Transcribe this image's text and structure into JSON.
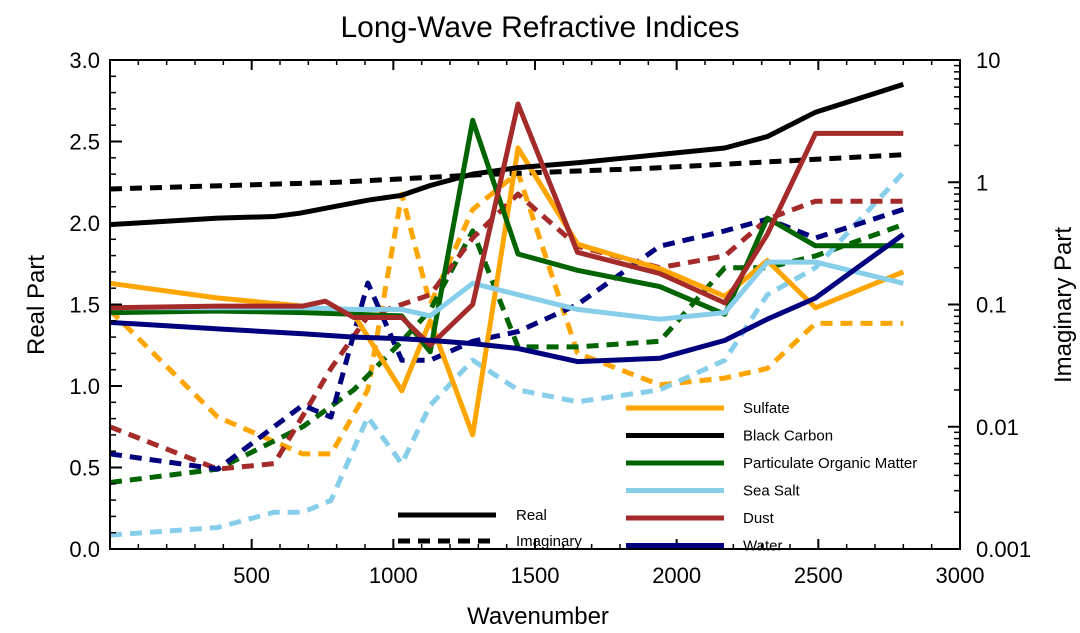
{
  "chart_data": {
    "type": "line",
    "title": "Long-Wave Refractive Indices",
    "xlabel": "Wavenumber",
    "ylabel": "Real Part",
    "y2label": "Imaginary Part",
    "xlim": [
      0,
      3000
    ],
    "ylim": [
      0,
      3.0
    ],
    "y2lim": [
      0.001,
      10
    ],
    "y2scale": "log",
    "xticks": [
      "500",
      "1000",
      "1500",
      "2000",
      "2500",
      "3000"
    ],
    "yticks": [
      "0.0",
      "0.5",
      "1.0",
      "1.5",
      "2.0",
      "2.5",
      "3.0"
    ],
    "y2ticks": [
      "0.001",
      "0.01",
      "0.1",
      "1",
      "10"
    ],
    "grid": false,
    "legend_placement": "bottom-right",
    "style_legend": [
      {
        "label": "Real",
        "dash": "solid"
      },
      {
        "label": "Imaginary",
        "dash": "dashed"
      }
    ],
    "series": [
      {
        "name": "Sulfate",
        "color": "#FFA500",
        "real": {
          "x": [
            0,
            380,
            680,
            860,
            1030,
            1130,
            1280,
            1440,
            1650,
            1940,
            2170,
            2320,
            2490,
            2800
          ],
          "y": [
            1.63,
            1.54,
            1.49,
            1.44,
            0.97,
            1.4,
            0.7,
            2.46,
            1.87,
            1.72,
            1.55,
            1.77,
            1.48,
            1.7
          ]
        },
        "imag": {
          "x": [
            0,
            380,
            680,
            780,
            910,
            1030,
            1130,
            1280,
            1440,
            1650,
            1940,
            2170,
            2320,
            2490,
            2800
          ],
          "y": [
            0.09,
            0.012,
            0.006,
            0.006,
            0.02,
            0.8,
            0.1,
            0.6,
            1.2,
            0.04,
            0.022,
            0.025,
            0.03,
            0.07,
            0.07
          ]
        }
      },
      {
        "name": "Black Carbon",
        "color": "#000000",
        "real": {
          "x": [
            0,
            380,
            580,
            670,
            760,
            910,
            1030,
            1130,
            1280,
            1440,
            1650,
            1940,
            2170,
            2320,
            2490,
            2800
          ],
          "y": [
            1.99,
            2.03,
            2.04,
            2.06,
            2.09,
            2.14,
            2.17,
            2.23,
            2.3,
            2.34,
            2.37,
            2.42,
            2.46,
            2.53,
            2.68,
            2.85
          ]
        },
        "imag": {
          "x": [
            0,
            800,
            1300,
            1900,
            2400,
            2800
          ],
          "y": [
            0.88,
            1.0,
            1.15,
            1.3,
            1.5,
            1.68
          ]
        }
      },
      {
        "name": "Particulate Organic Matter",
        "color": "#006400",
        "real": {
          "x": [
            0,
            380,
            680,
            860,
            1030,
            1130,
            1280,
            1440,
            1650,
            1940,
            2170,
            2320,
            2490,
            2800
          ],
          "y": [
            1.45,
            1.46,
            1.45,
            1.44,
            1.43,
            1.21,
            2.63,
            1.81,
            1.71,
            1.61,
            1.44,
            2.03,
            1.86,
            1.86
          ]
        },
        "imag": {
          "x": [
            0,
            380,
            680,
            860,
            1030,
            1130,
            1280,
            1440,
            1650,
            1940,
            2170,
            2320,
            2490,
            2800
          ],
          "y": [
            0.0035,
            0.0045,
            0.01,
            0.02,
            0.05,
            0.09,
            0.4,
            0.045,
            0.045,
            0.05,
            0.2,
            0.2,
            0.25,
            0.45
          ]
        }
      },
      {
        "name": "Sea Salt",
        "color": "#87CEEB",
        "real": {
          "x": [
            0,
            380,
            680,
            860,
            1030,
            1130,
            1280,
            1440,
            1650,
            1940,
            2170,
            2320,
            2490,
            2800
          ],
          "y": [
            1.48,
            1.48,
            1.48,
            1.47,
            1.47,
            1.43,
            1.63,
            1.56,
            1.47,
            1.41,
            1.45,
            1.76,
            1.76,
            1.63
          ]
        },
        "imag": {
          "x": [
            0,
            380,
            580,
            680,
            780,
            910,
            1030,
            1130,
            1280,
            1440,
            1650,
            1940,
            2170,
            2320,
            2490,
            2800
          ],
          "y": [
            0.0013,
            0.0015,
            0.002,
            0.002,
            0.0025,
            0.012,
            0.005,
            0.015,
            0.035,
            0.02,
            0.016,
            0.02,
            0.035,
            0.12,
            0.2,
            1.2
          ]
        }
      },
      {
        "name": "Dust",
        "color": "#A52A2A",
        "real": {
          "x": [
            0,
            380,
            580,
            680,
            760,
            860,
            1030,
            1130,
            1280,
            1440,
            1650,
            1940,
            2170,
            2320,
            2490,
            2800
          ],
          "y": [
            1.48,
            1.49,
            1.49,
            1.49,
            1.52,
            1.42,
            1.42,
            1.25,
            1.5,
            2.73,
            1.82,
            1.69,
            1.51,
            1.93,
            2.55,
            2.55
          ]
        },
        "imag": {
          "x": [
            0,
            380,
            580,
            780,
            910,
            1030,
            1130,
            1280,
            1440,
            1650,
            1940,
            2170,
            2320,
            2490,
            2800
          ],
          "y": [
            0.01,
            0.0045,
            0.005,
            0.03,
            0.08,
            0.1,
            0.12,
            0.35,
            0.8,
            0.3,
            0.2,
            0.25,
            0.5,
            0.7,
            0.7
          ]
        }
      },
      {
        "name": "Water",
        "color": "#00007F",
        "real": {
          "x": [
            0,
            380,
            680,
            860,
            1030,
            1130,
            1280,
            1440,
            1650,
            1940,
            2170,
            2320,
            2490,
            2800
          ],
          "y": [
            1.39,
            1.35,
            1.32,
            1.3,
            1.29,
            1.28,
            1.26,
            1.23,
            1.15,
            1.17,
            1.28,
            1.41,
            1.54,
            1.93
          ]
        },
        "imag": {
          "x": [
            0,
            380,
            680,
            780,
            910,
            1030,
            1130,
            1280,
            1440,
            1650,
            1940,
            2170,
            2320,
            2490,
            2800
          ],
          "y": [
            0.006,
            0.0045,
            0.015,
            0.012,
            0.15,
            0.035,
            0.035,
            0.05,
            0.06,
            0.1,
            0.3,
            0.4,
            0.5,
            0.35,
            0.6
          ]
        }
      }
    ]
  }
}
